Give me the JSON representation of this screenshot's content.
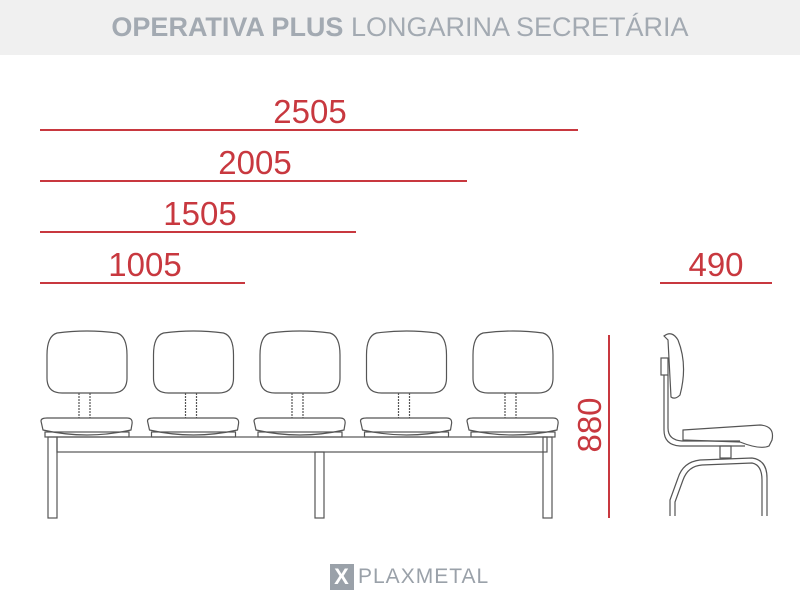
{
  "header": {
    "title_bold": "OPERATIVA PLUS",
    "title_regular": "LONGARINA SECRETÁRIA"
  },
  "dimensions": {
    "widths": [
      "2505",
      "2005",
      "1505",
      "1005"
    ],
    "depth": "490",
    "height": "880"
  },
  "chairs_in_front_view": 5,
  "logo": {
    "text": "PLAXMETAL",
    "mark": "X"
  },
  "colors": {
    "dimension": "#c8383f",
    "drawing": "#555555",
    "header_bg": "#f0f0f0",
    "header_text": "#a3aab2"
  }
}
